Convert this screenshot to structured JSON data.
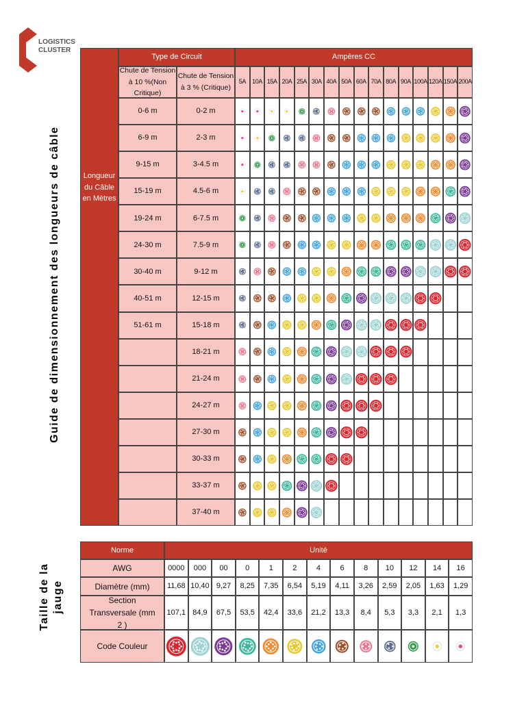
{
  "logo": {
    "line1": "LOGISTICS",
    "line2": "CLUSTER"
  },
  "side_title": "Guide de dimensionnement des longueurs de câble",
  "side_title2": "Taille de la jauge",
  "table1": {
    "circuit_header": "Type de Circuit",
    "amps_header": "Ampères CC",
    "row_header": "Longueur du Câble en Mètres",
    "col1": "Chute de Tension à 10 %(Non Critique)",
    "col2": "Chute de Tension à 3 % (Critique)",
    "amps": [
      "5A",
      "10A",
      "15A",
      "20A",
      "25A",
      "30A",
      "40A",
      "50A",
      "60A",
      "70A",
      "80A",
      "90A",
      "100A",
      "120A",
      "150A",
      "200A"
    ],
    "rows": [
      {
        "noncritical": "0-6 m",
        "critical": "0-2 m"
      },
      {
        "noncritical": "6-9 m",
        "critical": "2-3 m"
      },
      {
        "noncritical": "9-15 m",
        "critical": "3-4.5 m"
      },
      {
        "noncritical": "15-19 m",
        "critical": "4.5-6 m"
      },
      {
        "noncritical": "19-24 m",
        "critical": "6-7.5 m"
      },
      {
        "noncritical": "24-30 m",
        "critical": "7.5-9 m"
      },
      {
        "noncritical": "30-40 m",
        "critical": "9-12 m"
      },
      {
        "noncritical": "40-51 m",
        "critical": "12-15 m"
      },
      {
        "noncritical": "51-61 m",
        "critical": "15-18 m"
      },
      {
        "noncritical": null,
        "critical": "18-21 m"
      },
      {
        "noncritical": null,
        "critical": "21-24 m"
      },
      {
        "noncritical": null,
        "critical": "24-27 m"
      },
      {
        "noncritical": null,
        "critical": "27-30 m"
      },
      {
        "noncritical": null,
        "critical": "30-33 m"
      },
      {
        "noncritical": null,
        "critical": "33-37 m"
      },
      {
        "noncritical": null,
        "critical": "37-40 m"
      }
    ]
  },
  "table2": {
    "norme": "Norme",
    "unite": "Unité",
    "labels": [
      "AWG",
      "Diamètre (mm)",
      "Section Transversale (mm 2 )",
      "Code Couleur"
    ],
    "awg": [
      "0000",
      "000",
      "00",
      "0",
      "1",
      "2",
      "4",
      "6",
      "8",
      "10",
      "12",
      "14",
      "16"
    ],
    "diameter": [
      "11,68",
      "10,40",
      "9,27",
      "8,25",
      "7,35",
      "6,54",
      "5,19",
      "4,11",
      "3,26",
      "2,59",
      "2,05",
      "1,63",
      "1,29"
    ],
    "section": [
      "107,1",
      "84,9",
      "67,5",
      "53,5",
      "42,4",
      "33,6",
      "21,2",
      "13,3",
      "8,4",
      "5,3",
      "3,3",
      "2,1",
      "1,3"
    ],
    "colors": [
      "#d9252e",
      "#9fd3d3",
      "#7a3a96",
      "#3cb89a",
      "#f08a2c",
      "#e7c92e",
      "#3fa3dc",
      "#a0522d",
      "#ee7590",
      "#5e6f8f",
      "#2e9a48",
      "#e8d23a",
      "#e04aa0"
    ]
  }
}
